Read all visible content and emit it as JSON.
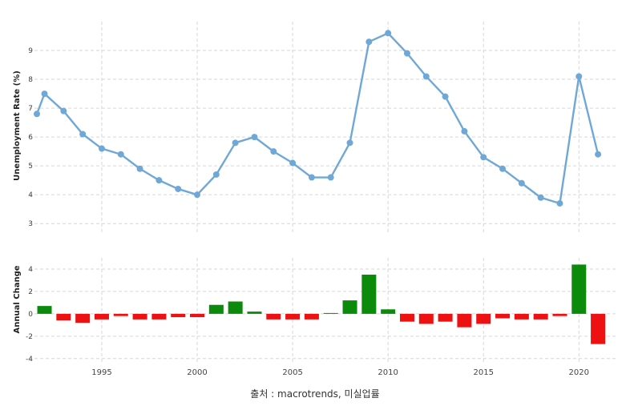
{
  "caption": "출처 : macrotrends, 미실업률",
  "colors": {
    "line": "#6fa8d6",
    "positive_bar": "#0b8a0b",
    "negative_bar": "#ee1111",
    "grid": "#d6d6d6"
  },
  "chart_data": [
    {
      "type": "line",
      "ylabel": "Unemployment Rate (%)",
      "ylim": [
        2.7,
        10
      ],
      "yticks": [
        3,
        4,
        5,
        6,
        7,
        8,
        9
      ],
      "xlim": [
        1991.6,
        2021.5
      ],
      "xticks": [
        1995,
        2000,
        2005,
        2010,
        2015,
        2020
      ],
      "grid": true,
      "x": [
        1991.6,
        1992,
        1993,
        1994,
        1995,
        1996,
        1997,
        1998,
        1999,
        2000,
        2001,
        2002,
        2003,
        2004,
        2005,
        2006,
        2007,
        2008,
        2009,
        2010,
        2011,
        2012,
        2013,
        2014,
        2015,
        2016,
        2017,
        2018,
        2019,
        2020,
        2021
      ],
      "values": [
        6.8,
        7.5,
        6.9,
        6.1,
        5.6,
        5.4,
        4.9,
        4.5,
        4.2,
        4.0,
        4.7,
        5.8,
        6.0,
        5.5,
        5.1,
        4.6,
        4.6,
        5.8,
        9.3,
        9.6,
        8.9,
        8.1,
        7.4,
        6.2,
        5.3,
        4.9,
        4.4,
        3.9,
        3.7,
        8.1,
        5.4
      ]
    },
    {
      "type": "bar",
      "ylabel": "Annual Change",
      "ylim": [
        -4.3,
        5
      ],
      "yticks": [
        -4,
        -2,
        0,
        2,
        4
      ],
      "xlim": [
        1991.6,
        2021.5
      ],
      "xticks": [
        1995,
        2000,
        2005,
        2010,
        2015,
        2020
      ],
      "grid": true,
      "categories": [
        1992,
        1993,
        1994,
        1995,
        1996,
        1997,
        1998,
        1999,
        2000,
        2001,
        2002,
        2003,
        2004,
        2005,
        2006,
        2007,
        2008,
        2009,
        2010,
        2011,
        2012,
        2013,
        2014,
        2015,
        2016,
        2017,
        2018,
        2019,
        2020,
        2021
      ],
      "values": [
        0.7,
        -0.6,
        -0.8,
        -0.5,
        -0.2,
        -0.5,
        -0.5,
        -0.3,
        -0.3,
        0.8,
        1.1,
        0.2,
        -0.5,
        -0.5,
        -0.5,
        0.0,
        1.2,
        3.5,
        0.4,
        -0.7,
        -0.9,
        -0.7,
        -1.2,
        -0.9,
        -0.4,
        -0.5,
        -0.5,
        -0.2,
        4.4,
        -2.7
      ]
    }
  ]
}
